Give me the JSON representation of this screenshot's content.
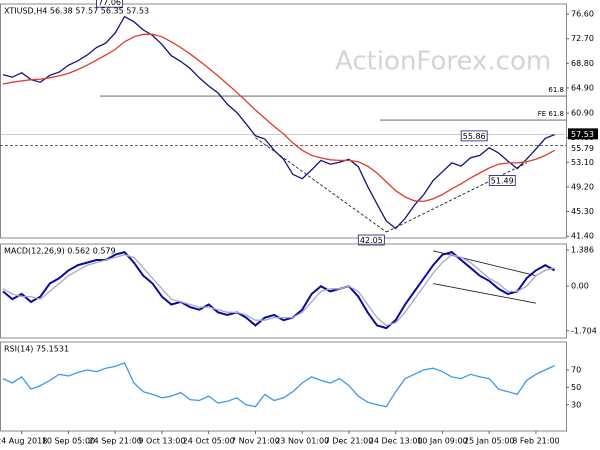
{
  "watermark": "ActionForex.com",
  "chart_data": [
    {
      "type": "line",
      "title": "XTIUSD,H4  56.38 57.57 56.35 57.53",
      "ylim": [
        41.1,
        78.2
      ],
      "yticks": [
        {
          "value": 76.6,
          "label": "76.60"
        },
        {
          "value": 72.7,
          "label": "72.70"
        },
        {
          "value": 68.8,
          "label": "68.80"
        },
        {
          "value": 64.9,
          "label": "64.90"
        },
        {
          "value": 60.9,
          "label": "60.90"
        },
        {
          "value": 57.0,
          "label": "57.00"
        },
        {
          "value": 53.1,
          "label": "53.10"
        },
        {
          "value": 49.2,
          "label": "49.20"
        },
        {
          "value": 45.3,
          "label": "45.30"
        },
        {
          "value": 41.4,
          "label": "41.40"
        }
      ],
      "series": [
        {
          "name": "XTIUSD",
          "color": "#14147a",
          "values": [
            67.0,
            66.6,
            67.3,
            66.2,
            65.8,
            66.9,
            67.4,
            68.5,
            69.2,
            70.1,
            71.3,
            72.0,
            73.6,
            76.2,
            75.4,
            74.1,
            73.2,
            71.8,
            70.0,
            69.1,
            68.0,
            66.5,
            65.2,
            64.1,
            62.3,
            61.0,
            59.2,
            57.3,
            56.8,
            55.0,
            53.6,
            51.2,
            50.5,
            51.9,
            53.4,
            52.8,
            53.1,
            53.6,
            52.4,
            49.3,
            46.5,
            43.8,
            42.6,
            44.2,
            46.3,
            48.0,
            50.2,
            51.6,
            53.0,
            52.5,
            53.8,
            54.2,
            55.4,
            54.6,
            53.3,
            52.1,
            53.6,
            55.2,
            56.9,
            57.5
          ]
        },
        {
          "name": "MA",
          "color": "#e23a2a",
          "values": [
            65.5,
            65.8,
            66.0,
            66.2,
            66.3,
            66.5,
            66.8,
            67.2,
            67.8,
            68.5,
            69.3,
            70.1,
            71.0,
            72.2,
            73.0,
            73.4,
            73.4,
            73.0,
            72.2,
            71.3,
            70.3,
            69.2,
            68.0,
            66.8,
            65.5,
            64.2,
            62.8,
            61.4,
            60.1,
            58.8,
            57.6,
            56.2,
            55.0,
            54.2,
            53.8,
            53.5,
            53.4,
            53.4,
            53.2,
            52.5,
            51.4,
            50.0,
            48.6,
            47.6,
            47.0,
            46.9,
            47.3,
            48.0,
            48.9,
            49.7,
            50.6,
            51.4,
            52.2,
            52.8,
            53.0,
            53.0,
            53.2,
            53.6,
            54.2,
            55.0
          ]
        }
      ],
      "levels": [
        {
          "label": "61.8",
          "value": 63.6
        },
        {
          "label": "FE 61.8",
          "value": 59.8
        }
      ],
      "last": 57.53,
      "dashed_level": 55.79,
      "annotations": [
        {
          "x": 13,
          "value": 77.06
        },
        {
          "x": 41,
          "value": 42.05
        },
        {
          "x": 52,
          "value": 55.86
        },
        {
          "x": 55,
          "value": 51.49
        }
      ],
      "trendlines": [
        {
          "x": [
            27,
            41
          ],
          "y": [
            57.0,
            42.05
          ]
        },
        {
          "x": [
            41,
            56
          ],
          "y": [
            42.05,
            53.0
          ]
        }
      ]
    },
    {
      "type": "line",
      "title": "MACD(12,26,9) 0.562 0.579",
      "ylim": [
        -1.98,
        1.61
      ],
      "yticks": [
        1.386,
        {
          "value": 0,
          "label": "0.00"
        },
        -1.704
      ],
      "series": [
        {
          "name": "MACD",
          "color": "#0a0a9a",
          "values": [
            -0.2,
            -0.5,
            -0.3,
            -0.6,
            -0.4,
            0.1,
            0.3,
            0.6,
            0.8,
            0.9,
            1.0,
            1.0,
            1.2,
            1.3,
            0.9,
            0.4,
            0.1,
            -0.4,
            -0.7,
            -0.6,
            -0.8,
            -0.9,
            -0.7,
            -1.0,
            -1.1,
            -1.0,
            -1.2,
            -1.5,
            -1.2,
            -1.1,
            -1.3,
            -1.2,
            -0.9,
            -0.3,
            0.0,
            -0.2,
            -0.1,
            0.0,
            -0.4,
            -1.0,
            -1.5,
            -1.6,
            -1.3,
            -0.7,
            -0.2,
            0.3,
            0.8,
            1.2,
            1.3,
            1.0,
            0.7,
            0.4,
            0.2,
            -0.1,
            -0.3,
            -0.2,
            0.3,
            0.6,
            0.8,
            0.6
          ]
        },
        {
          "name": "Signal",
          "color": "#a8a8c8",
          "values": [
            -0.1,
            -0.3,
            -0.4,
            -0.4,
            -0.5,
            -0.2,
            0.1,
            0.4,
            0.6,
            0.8,
            0.9,
            1.0,
            1.1,
            1.2,
            1.1,
            0.7,
            0.3,
            -0.1,
            -0.5,
            -0.6,
            -0.7,
            -0.8,
            -0.8,
            -0.9,
            -1.0,
            -1.0,
            -1.1,
            -1.3,
            -1.3,
            -1.2,
            -1.2,
            -1.2,
            -1.0,
            -0.6,
            -0.2,
            -0.1,
            -0.1,
            0.0,
            -0.2,
            -0.7,
            -1.2,
            -1.5,
            -1.4,
            -1.0,
            -0.5,
            0.0,
            0.5,
            0.9,
            1.2,
            1.1,
            0.9,
            0.6,
            0.3,
            0.1,
            -0.2,
            -0.2,
            0.0,
            0.4,
            0.6,
            0.7
          ]
        }
      ],
      "trendlines": [
        {
          "x": [
            46,
            57
          ],
          "y": [
            1.35,
            0.4
          ]
        },
        {
          "x": [
            46,
            57
          ],
          "y": [
            0.1,
            -0.65
          ]
        }
      ]
    },
    {
      "type": "line",
      "title": "RSI(14) 75.1531",
      "ylim": [
        0,
        102
      ],
      "yticks": [
        70,
        50,
        30
      ],
      "series": [
        {
          "name": "RSI",
          "color": "#3a9af0",
          "values": [
            60,
            55,
            62,
            48,
            52,
            58,
            65,
            63,
            67,
            70,
            68,
            72,
            74,
            78,
            55,
            45,
            42,
            38,
            40,
            44,
            36,
            35,
            40,
            32,
            34,
            38,
            30,
            28,
            42,
            35,
            38,
            45,
            55,
            62,
            58,
            55,
            60,
            52,
            40,
            33,
            30,
            28,
            45,
            60,
            65,
            70,
            72,
            68,
            62,
            60,
            65,
            62,
            60,
            48,
            45,
            42,
            58,
            65,
            70,
            75
          ]
        }
      ],
      "xticks": [
        {
          "value": 2,
          "label": "24 Aug 2018"
        },
        {
          "value": 7,
          "label": "10 Sep 05:00"
        },
        {
          "value": 12,
          "label": "24 Sep 21:00"
        },
        {
          "value": 17,
          "label": "9 Oct 13:00"
        },
        {
          "value": 22,
          "label": "24 Oct 05:00"
        },
        {
          "value": 27,
          "label": "7 Nov 21:00"
        },
        {
          "value": 32,
          "label": "23 Nov 01:00"
        },
        {
          "value": 37,
          "label": "7 Dec 21:00"
        },
        {
          "value": 42,
          "label": "24 Dec 13:00"
        },
        {
          "value": 47,
          "label": "10 Jan 09:00"
        },
        {
          "value": 52,
          "label": "25 Jan 05:00"
        },
        {
          "value": 57,
          "label": "8 Feb 21:00"
        }
      ]
    }
  ]
}
